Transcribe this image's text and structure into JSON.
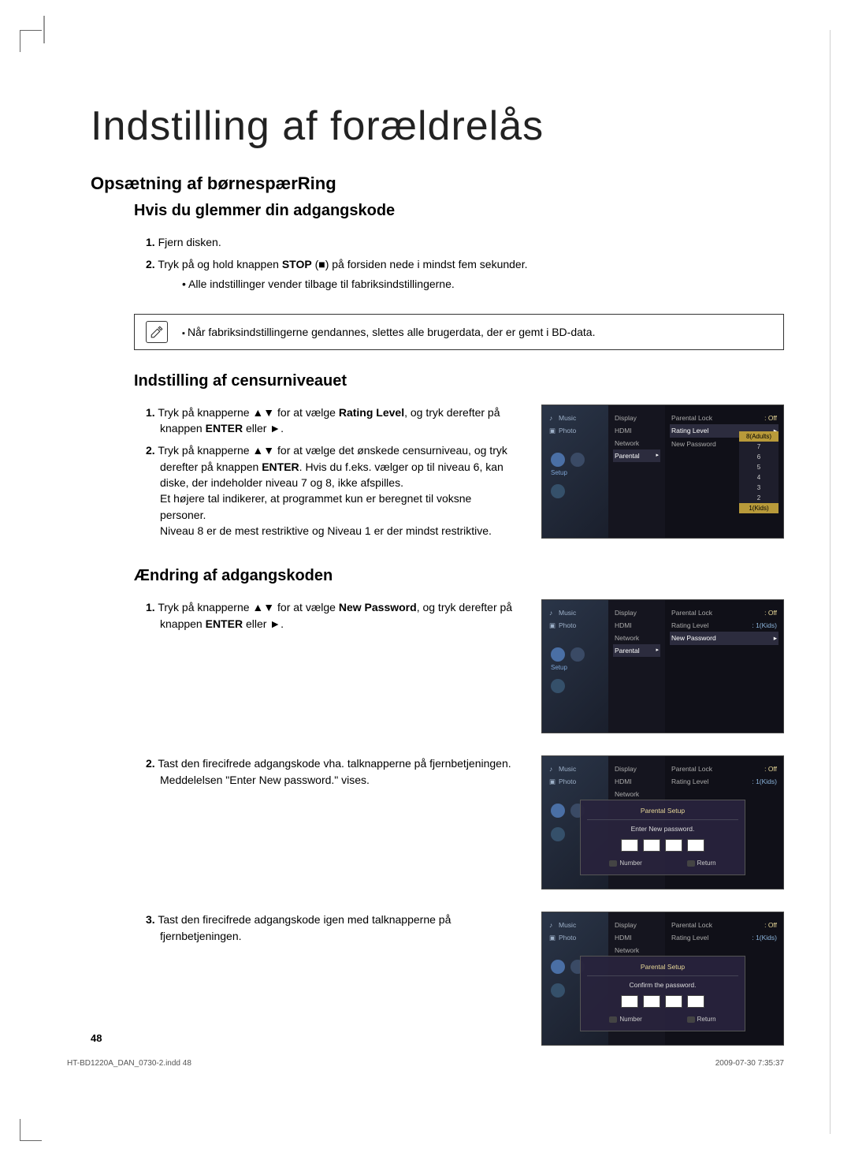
{
  "main_title": "Indstilling af forældrelås",
  "section1_title": "Opsætning af børnespærRing",
  "sub1_title": "Hvis du glemmer din adgangskode",
  "sub1_steps": [
    {
      "n": "1.",
      "html": "Fjern disken."
    },
    {
      "n": "2.",
      "html": "Tryk på og hold knappen <b>STOP</b> (■) på forsiden nede i mindst fem sekunder."
    }
  ],
  "sub1_bullet": "Alle indstillinger vender tilbage til fabriksindstillingerne.",
  "note_text": "Når fabriksindstillingerne gendannes, slettes alle brugerdata, der er gemt i BD-data.",
  "sub2_title": "Indstilling af censurniveauet",
  "sub2_steps": [
    {
      "n": "1.",
      "html": "Tryk på knapperne ▲▼ for at vælge <b>Rating Level</b>, og tryk derefter på knappen <b>ENTER</b> eller ►."
    },
    {
      "n": "2.",
      "html": "Tryk på knapperne ▲▼ for at vælge det ønskede censurniveau, og tryk derefter på knappen <b>ENTER</b>. Hvis du f.eks. vælger op til niveau 6, kan diske, der indeholder niveau 7 og 8, ikke afspilles.<br>Et højere tal indikerer, at programmet kun er beregnet til voksne personer.<br>Niveau 8 er de mest restriktive og Niveau 1 er der mindst restriktive."
    }
  ],
  "sub3_title": "Ændring af adgangskoden",
  "sub3_step1": {
    "n": "1.",
    "html": "Tryk på knapperne ▲▼ for at vælge <b>New Password</b>, og tryk derefter på knappen <b>ENTER</b> eller ►."
  },
  "sub3_step2": {
    "n": "2.",
    "html": "Tast den firecifrede adgangskode vha. talknapperne på fjernbetjeningen. Meddelelsen \"Enter New password.\" vises."
  },
  "sub3_step3": {
    "n": "3.",
    "html": "Tast den firecifrede adgangskode igen med talknapperne på fjernbetjeningen."
  },
  "page_num": "48",
  "footer_left": "HT-BD1220A_DAN_0730-2.indd   48",
  "footer_right": "2009-07-30   7:35:37",
  "tv": {
    "left_items": [
      "Music",
      "Photo"
    ],
    "setup_label": "Setup",
    "mid_items": [
      "Display",
      "HDMI",
      "Network",
      "Parental"
    ],
    "right_rows_rating": [
      {
        "label": "Parental Lock",
        "val": ": Off",
        "cls": ""
      },
      {
        "label": "Rating Level",
        "val": "▸",
        "cls": "sel"
      },
      {
        "label": "New Password",
        "val": "",
        "cls": ""
      }
    ],
    "ratings_dd": [
      "8(Adults)",
      "7",
      "6",
      "5",
      "4",
      "3",
      "2",
      "1(Kids)"
    ],
    "right_rows_newpw": [
      {
        "label": "Parental Lock",
        "val": ": Off",
        "cls": ""
      },
      {
        "label": "Rating Level",
        "val": ": 1(Kids)",
        "cls": "",
        "vc": "valblue"
      },
      {
        "label": "New Password",
        "val": "▸",
        "cls": "sel"
      }
    ],
    "right_rows_modal": [
      {
        "label": "Parental Lock",
        "val": ": Off",
        "cls": ""
      },
      {
        "label": "Rating Level",
        "val": ": 1(Kids)",
        "cls": "",
        "vc": "valblue"
      }
    ],
    "modal_title": "Parental Setup",
    "modal_enter": "Enter New password.",
    "modal_confirm": "Confirm the password.",
    "modal_btn_num": "Number",
    "modal_btn_ret": "Return"
  },
  "colors": {
    "tv_bg": "#1a1a28",
    "tv_accent": "#b89a3a",
    "tv_blue": "#4a6fa5"
  }
}
